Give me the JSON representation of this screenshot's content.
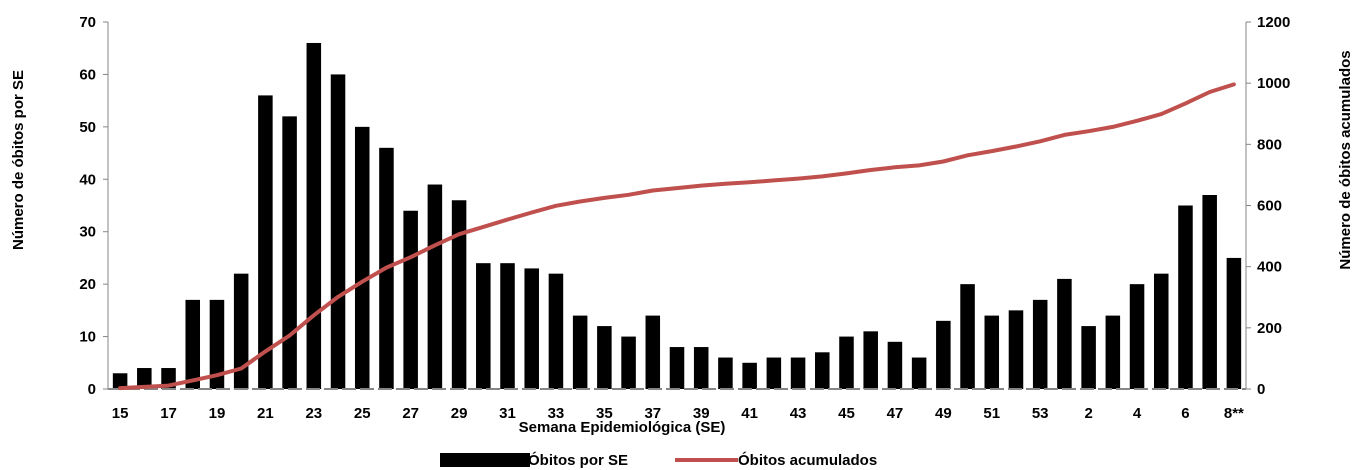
{
  "chart_data": {
    "type": "bar",
    "xlabel": "Semana Epidemiológica (SE)",
    "ylabel_left": "Número de óbitos por SE",
    "ylabel_right": "Número de óbitos acumulados",
    "ylim_left": [
      0,
      70
    ],
    "ylim_right": [
      0,
      1200
    ],
    "yticks_left": [
      "0",
      "10",
      "20",
      "30",
      "40",
      "50",
      "60",
      "70"
    ],
    "yticks_right": [
      "0",
      "200",
      "400",
      "600",
      "800",
      "1000",
      "1200"
    ],
    "categories": [
      "15",
      "16",
      "17",
      "18",
      "19",
      "20",
      "21",
      "22",
      "23",
      "24",
      "25",
      "26",
      "27",
      "28",
      "29",
      "30",
      "31",
      "32",
      "33",
      "34",
      "35",
      "36",
      "37",
      "38",
      "39",
      "40",
      "41",
      "42",
      "43",
      "44",
      "45",
      "46",
      "47",
      "48",
      "49",
      "50",
      "51",
      "52",
      "53",
      "1",
      "2",
      "3",
      "4",
      "5",
      "6",
      "7",
      "8**"
    ],
    "x_tick_labels": [
      "15",
      "17",
      "19",
      "21",
      "23",
      "25",
      "27",
      "29",
      "31",
      "33",
      "35",
      "37",
      "39",
      "41",
      "43",
      "45",
      "47",
      "49",
      "51",
      "53",
      "2",
      "4",
      "6",
      "8**"
    ],
    "grid": false,
    "legend_position": "bottom",
    "series": [
      {
        "name": "Óbitos por SE",
        "type": "bar",
        "axis": "left",
        "color": "#000000",
        "values": [
          3,
          4,
          4,
          17,
          17,
          22,
          56,
          52,
          66,
          60,
          50,
          46,
          34,
          39,
          36,
          24,
          24,
          23,
          22,
          14,
          12,
          10,
          14,
          8,
          8,
          6,
          5,
          6,
          6,
          7,
          10,
          11,
          9,
          6,
          13,
          20,
          14,
          15,
          17,
          21,
          12,
          14,
          20,
          22,
          35,
          37,
          25
        ]
      },
      {
        "name": "Óbitos acumulados",
        "type": "line",
        "axis": "right",
        "color": "#C0504D",
        "values": [
          3,
          7,
          11,
          28,
          45,
          67,
          123,
          175,
          241,
          301,
          351,
          397,
          431,
          470,
          506,
          530,
          554,
          577,
          599,
          613,
          625,
          635,
          649,
          657,
          665,
          671,
          676,
          682,
          688,
          695,
          705,
          716,
          725,
          731,
          744,
          764,
          778,
          793,
          810,
          831,
          843,
          857,
          877,
          899,
          934,
          971,
          996
        ]
      }
    ]
  }
}
